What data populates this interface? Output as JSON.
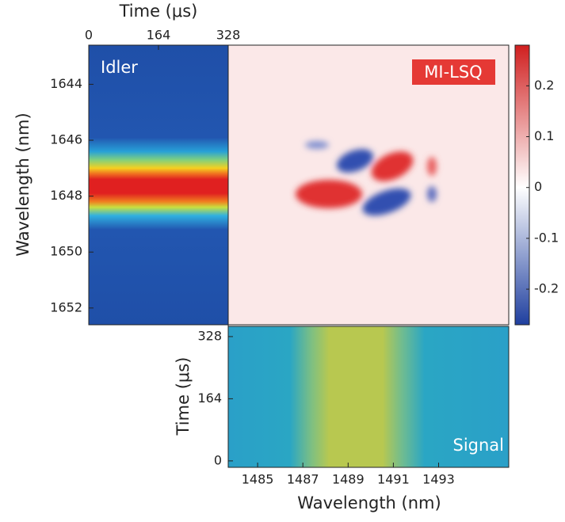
{
  "chart_data": [
    {
      "type": "heatmap",
      "label": "Idler",
      "x_label": "Time (μs)",
      "y_label": "Wavelength (nm)",
      "xlim": [
        0,
        328
      ],
      "xticks": [
        0,
        164,
        328
      ],
      "ylim": [
        1642.6,
        1652.6
      ],
      "yticks": [
        1644,
        1646,
        1648,
        1650,
        1652
      ],
      "y_inverted": true,
      "colormap": "jet"
    },
    {
      "type": "heatmap",
      "label": "MI-LSQ",
      "colormap": "red-white-blue",
      "clim": [
        -0.27,
        0.28
      ],
      "cticks": [
        0.2,
        0.1,
        0,
        -0.1,
        -0.2
      ]
    },
    {
      "type": "heatmap",
      "label": "Signal",
      "x_label": "Wavelength (nm)",
      "y_label": "Time (μs)",
      "xlim": [
        1483.7,
        1496.1
      ],
      "xticks": [
        1485,
        1487,
        1489,
        1491,
        1493
      ],
      "ylim": [
        -17,
        355
      ],
      "yticks": [
        0,
        164,
        328
      ],
      "colormap": "viridis"
    }
  ]
}
